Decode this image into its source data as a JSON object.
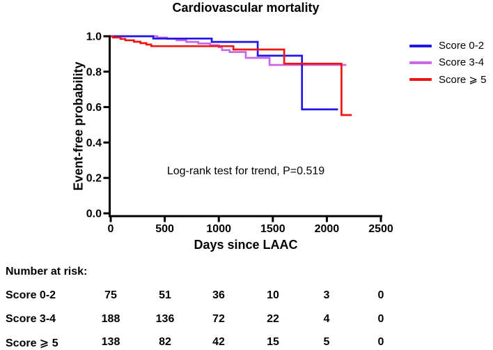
{
  "title": "Cardiovascular mortality",
  "chart_data": {
    "type": "line",
    "subtype": "kaplan-meier-step",
    "title": "Cardiovascular mortality",
    "xlabel": "Days since LAAC",
    "ylabel": "Event-free probability",
    "xlim": [
      0,
      2500
    ],
    "ylim": [
      0.0,
      1.0
    ],
    "xticks": [
      "0",
      "500",
      "1000",
      "1500",
      "2000",
      "2500"
    ],
    "yticks": [
      "1.0",
      "0.8",
      "0.6",
      "0.4",
      "0.2",
      "0.0"
    ],
    "grid": "off",
    "legend_position": "right-top",
    "annotation": "Log-rank test for trend, P=0.519",
    "series": [
      {
        "name": "Score 0-2",
        "color": "#2016e8",
        "steps": [
          [
            0,
            1.0
          ],
          [
            394,
            0.987
          ],
          [
            935,
            0.968
          ],
          [
            1360,
            0.89
          ],
          [
            1770,
            0.587
          ]
        ],
        "end_day": 2103
      },
      {
        "name": "Score 3-4",
        "color": "#c968e6",
        "steps": [
          [
            0,
            1.0
          ],
          [
            430,
            0.993
          ],
          [
            520,
            0.985
          ],
          [
            610,
            0.977
          ],
          [
            700,
            0.968
          ],
          [
            810,
            0.959
          ],
          [
            920,
            0.95
          ],
          [
            1000,
            0.938
          ],
          [
            1030,
            0.922
          ],
          [
            1100,
            0.911
          ],
          [
            1250,
            0.878
          ],
          [
            1470,
            0.838
          ]
        ],
        "end_day": 2180
      },
      {
        "name": "Score ⩾ 5",
        "color": "#f01515",
        "steps": [
          [
            0,
            1.0
          ],
          [
            20,
            0.993
          ],
          [
            90,
            0.985
          ],
          [
            135,
            0.977
          ],
          [
            215,
            0.969
          ],
          [
            275,
            0.961
          ],
          [
            330,
            0.953
          ],
          [
            375,
            0.944
          ],
          [
            1135,
            0.925
          ],
          [
            1605,
            0.845
          ],
          [
            2135,
            0.555
          ]
        ],
        "end_day": 2230
      }
    ]
  },
  "legend": {
    "items": [
      {
        "label": "Score 0-2",
        "color": "#2016e8"
      },
      {
        "label": "Score 3-4",
        "color": "#c968e6"
      },
      {
        "label": "Score ⩾ 5",
        "color": "#f01515"
      }
    ]
  },
  "risk_table": {
    "header": "Number at risk:",
    "x_positions": [
      "0",
      "500",
      "1000",
      "1500",
      "2000",
      "2500"
    ],
    "rows": [
      {
        "label": "Score 0-2",
        "counts": [
          "75",
          "51",
          "36",
          "10",
          "3",
          "0"
        ]
      },
      {
        "label": "Score 3-4",
        "counts": [
          "188",
          "136",
          "72",
          "22",
          "4",
          "0"
        ]
      },
      {
        "label": "Score ⩾ 5",
        "counts": [
          "138",
          "82",
          "42",
          "15",
          "5",
          "0"
        ]
      }
    ]
  }
}
